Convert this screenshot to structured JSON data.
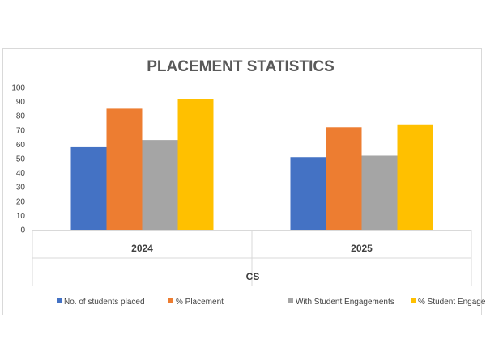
{
  "chart_data": {
    "type": "bar",
    "title": "PLACEMENT STATISTICS",
    "categories": [
      "2024",
      "2025"
    ],
    "group_label": "CS",
    "ylim": [
      0,
      100
    ],
    "yticks": [
      0,
      10,
      20,
      30,
      40,
      50,
      60,
      70,
      80,
      90,
      100
    ],
    "grid": false,
    "legend_position": "bottom",
    "series": [
      {
        "name": "No. of students placed",
        "color": "#4472c4",
        "values": [
          58,
          51
        ]
      },
      {
        "name": "% Placement",
        "color": "#ed7d31",
        "values": [
          85,
          72
        ]
      },
      {
        "name": "With Student Engagements",
        "color": "#a5a5a5",
        "values": [
          63,
          52
        ]
      },
      {
        "name": "% Student Engagement",
        "color": "#ffc000",
        "values": [
          92,
          74
        ]
      }
    ]
  }
}
